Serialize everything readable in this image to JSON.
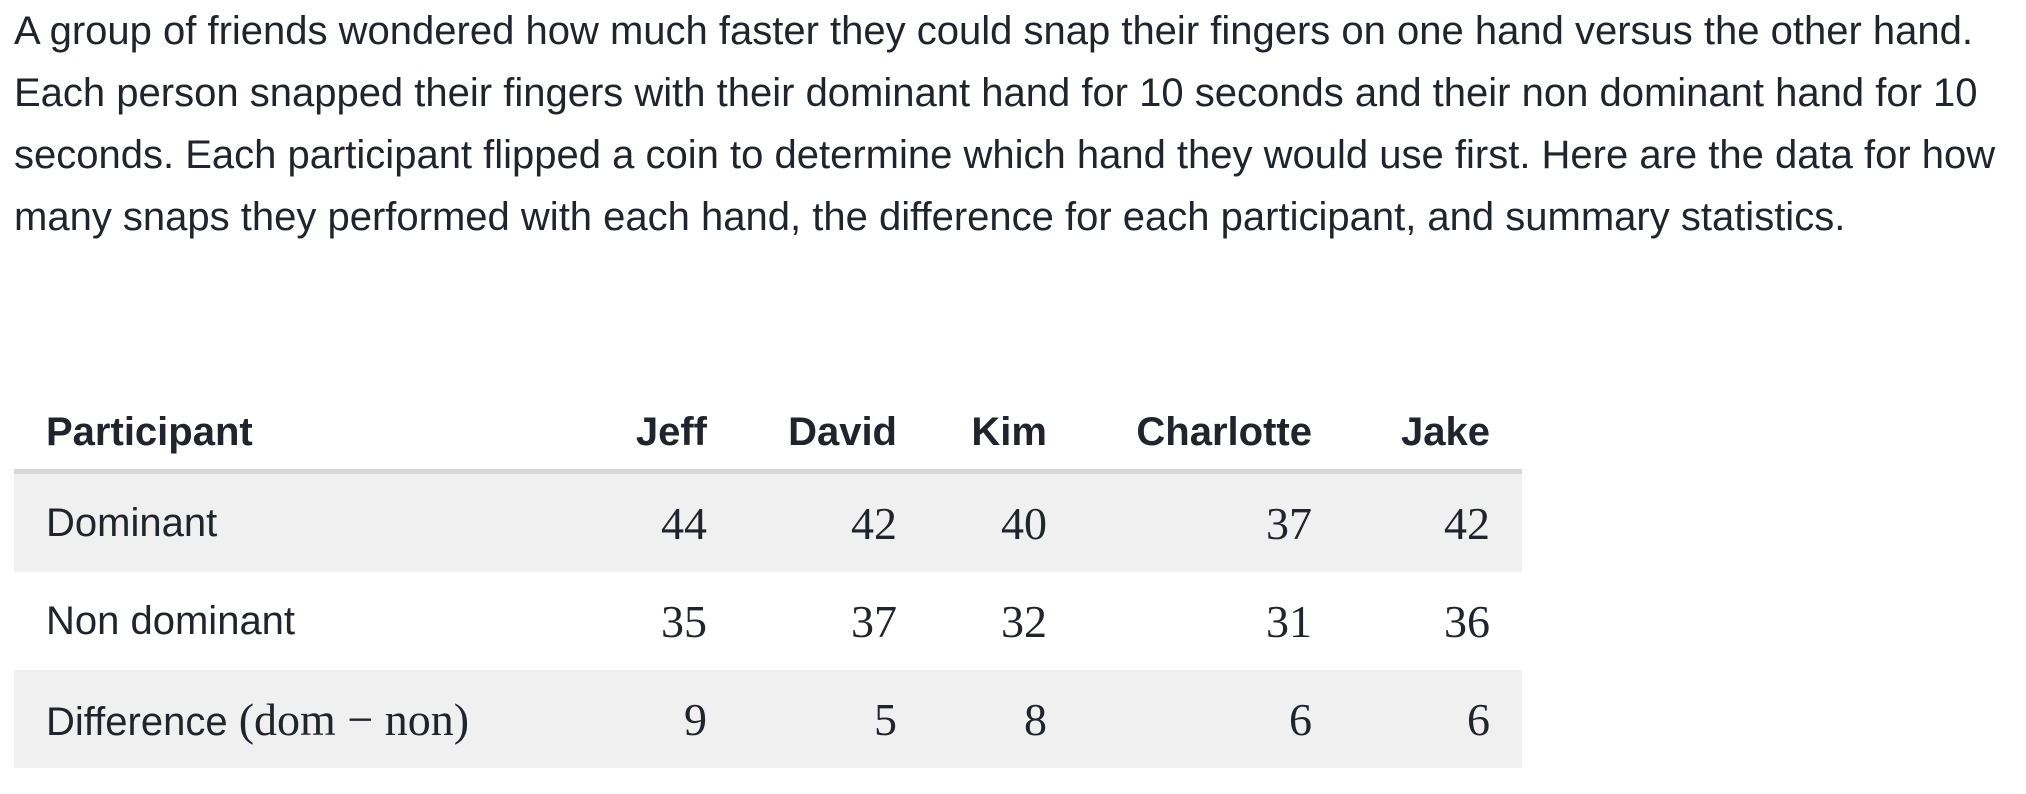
{
  "intro_text": "A group of friends wondered how much faster they could snap their fingers on one hand versus the other hand. Each person snapped their fingers with their dominant hand for 10 seconds and their non dominant hand for 10 seconds. Each participant flipped a coin to determine which hand they would use first. Here are the data for how many snaps they performed with each hand, the difference for each participant, and summary statistics.",
  "table": {
    "header_label": "Participant",
    "participants": [
      "Jeff",
      "David",
      "Kim",
      "Charlotte",
      "Jake"
    ],
    "rows": [
      {
        "label": "Dominant",
        "values": [
          "44",
          "42",
          "40",
          "37",
          "42"
        ]
      },
      {
        "label": "Non dominant",
        "values": [
          "35",
          "37",
          "32",
          "31",
          "36"
        ]
      },
      {
        "label": "Difference",
        "math": "(dom − non)",
        "values": [
          "9",
          "5",
          "8",
          "6",
          "6"
        ]
      }
    ]
  }
}
